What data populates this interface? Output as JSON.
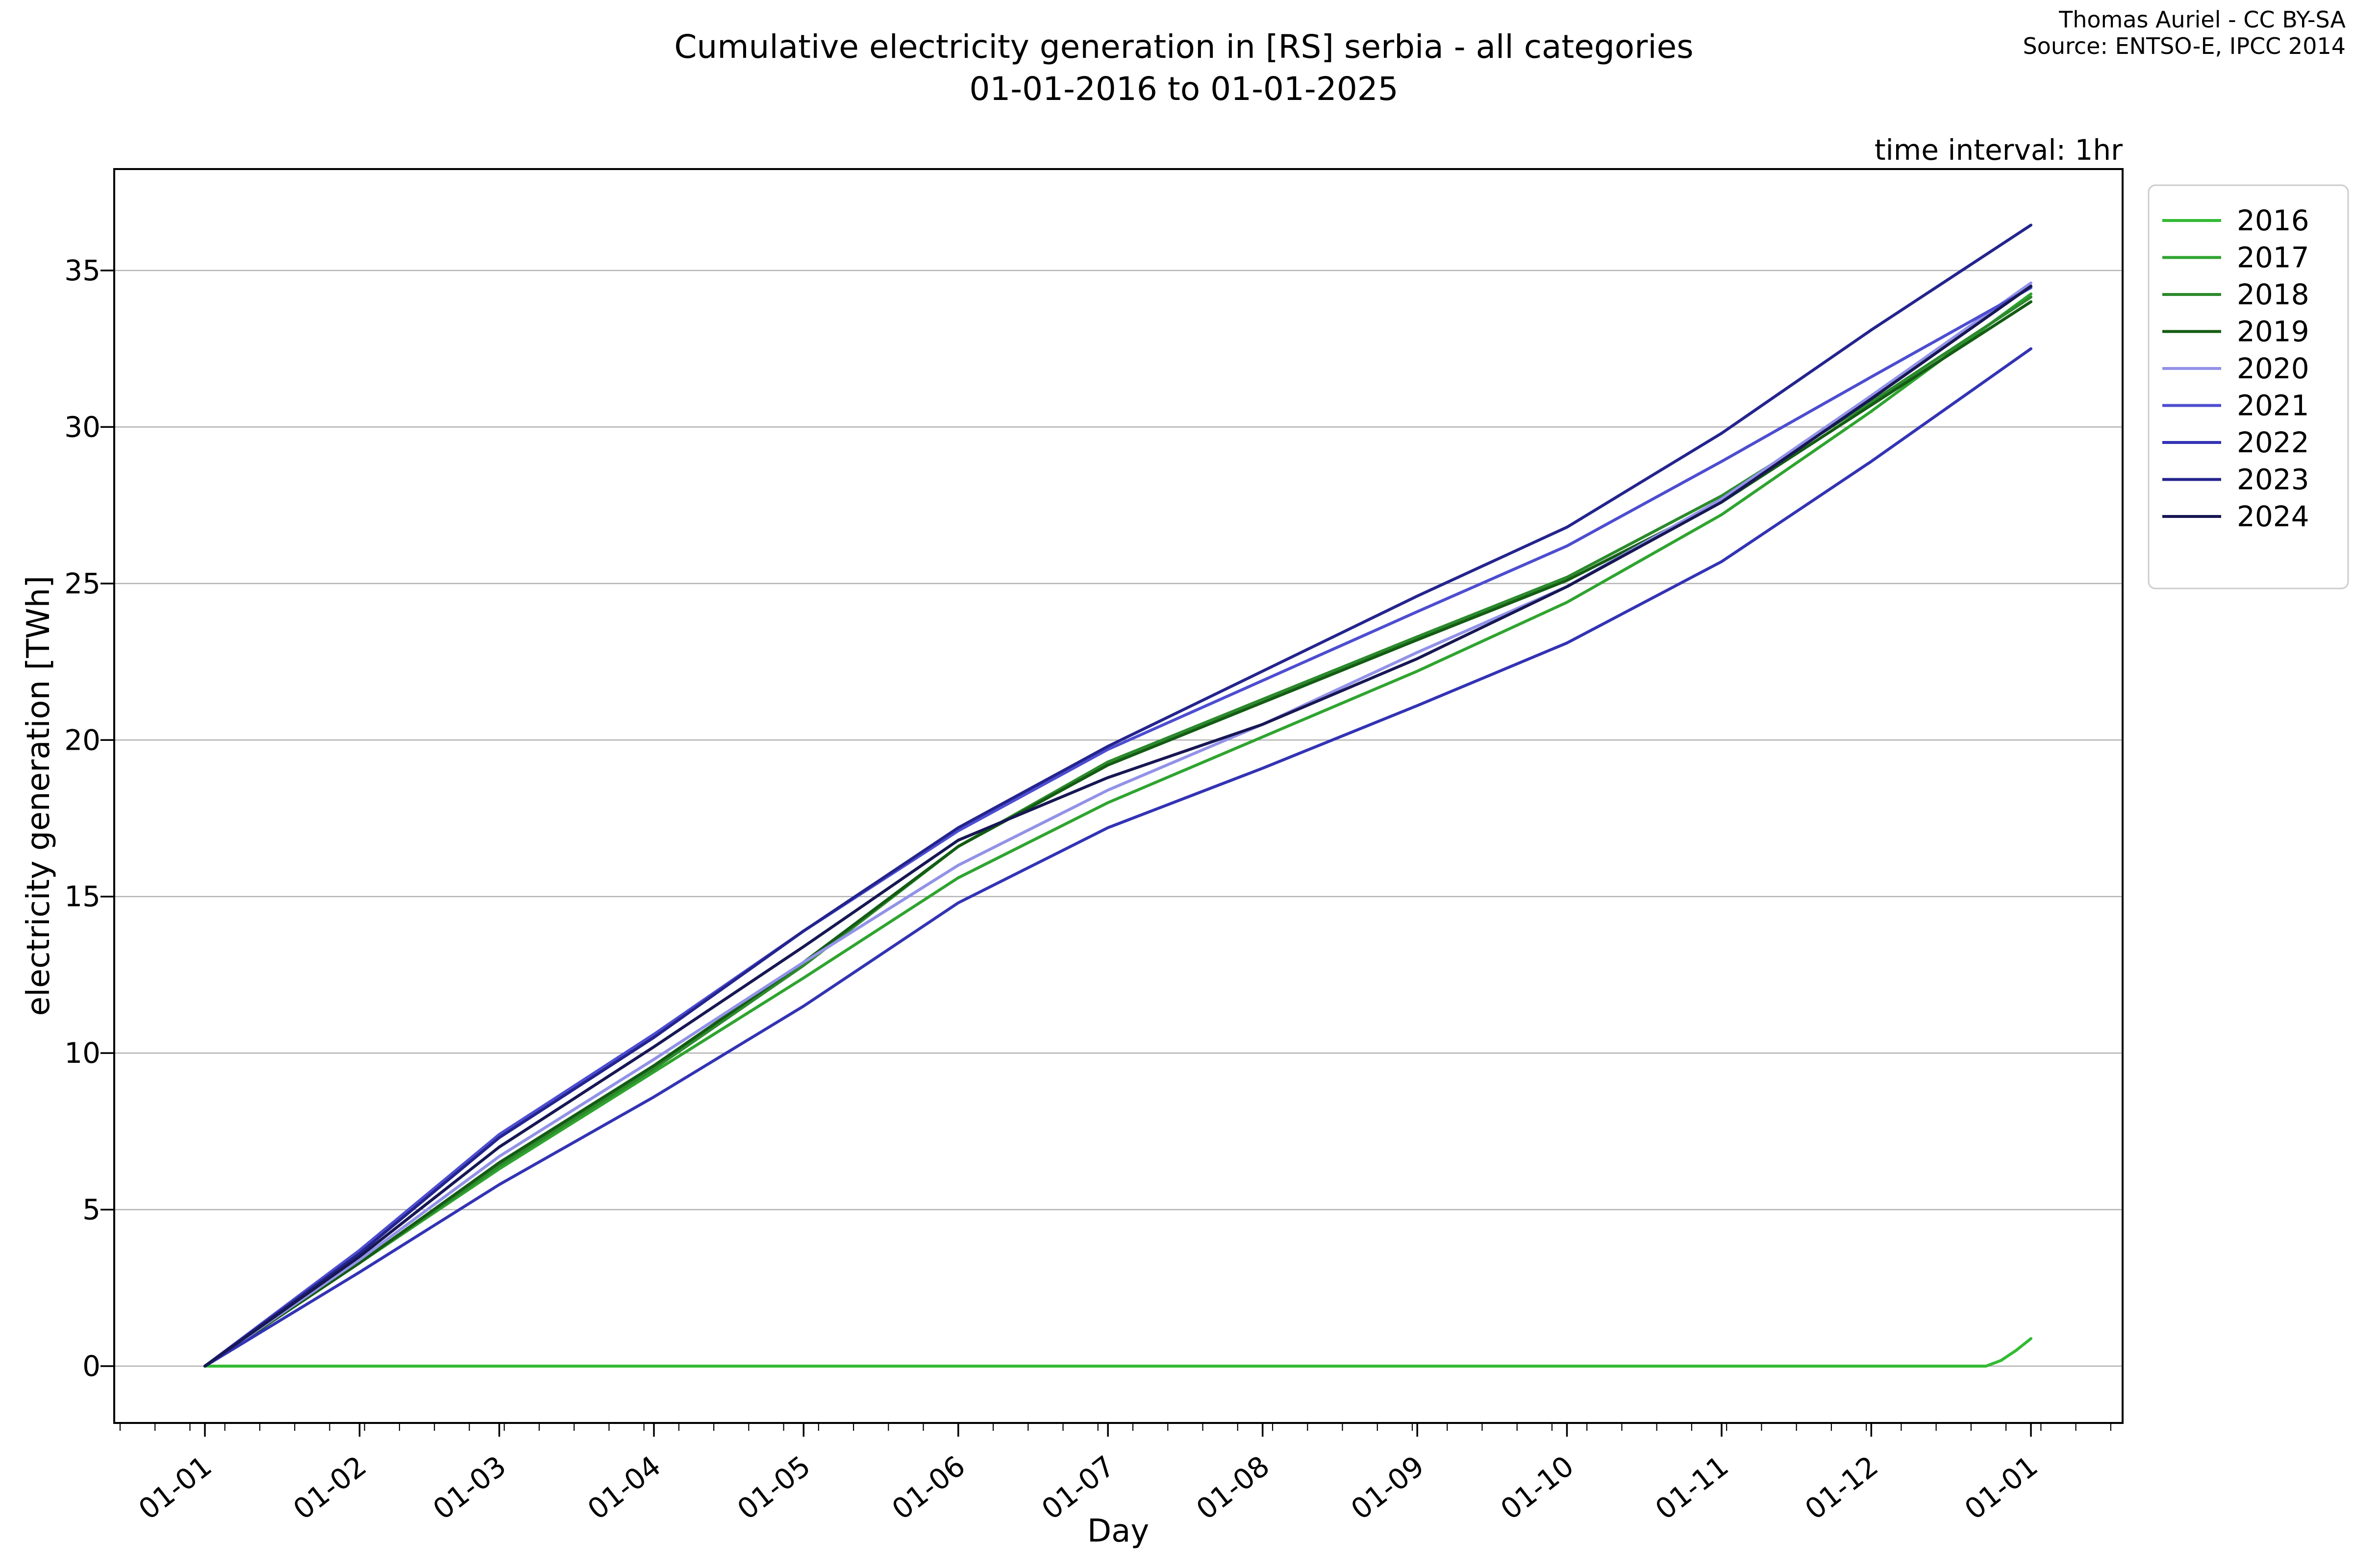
{
  "header": {
    "title_line1": "Cumulative electricity generation in [RS] serbia - all categories",
    "title_line2": "01-01-2016 to 01-01-2025",
    "attribution_line1": "Thomas Auriel - CC BY-SA",
    "attribution_line2": "Source: ENTSO-E, IPCC 2014"
  },
  "chart_data": {
    "type": "line",
    "title": "Cumulative electricity generation in [RS] serbia - all categories 01-01-2016 to 01-01-2025",
    "note": "time interval: 1hr",
    "xlabel": "Day",
    "ylabel": "electricity generation [TWh]",
    "grid": "horizontal-only",
    "grid_color": "#b3b3b3",
    "legend_position": "upper right, outside plot",
    "x_tick_labels": [
      "01-01",
      "01-02",
      "01-03",
      "01-04",
      "01-05",
      "01-06",
      "01-07",
      "01-08",
      "01-09",
      "01-10",
      "01-11",
      "01-12",
      "01-01"
    ],
    "x_tick_days": [
      0,
      31,
      59,
      90,
      120,
      151,
      181,
      212,
      243,
      273,
      304,
      334,
      366
    ],
    "minor_tick_days": {
      "start": -17,
      "step": 7,
      "end": 384
    },
    "y_ticks": [
      0,
      5,
      10,
      15,
      20,
      25,
      30,
      35
    ],
    "ylim": [
      -1.82,
      38.27
    ],
    "xlim_days": [
      -18.3,
      384.3
    ],
    "series": [
      {
        "name": "2016",
        "color": "#33bb33",
        "points": [
          [
            0,
            0
          ],
          [
            357,
            0
          ],
          [
            360,
            0.18
          ],
          [
            363,
            0.5
          ],
          [
            366,
            0.88
          ]
        ]
      },
      {
        "name": "2017",
        "color": "#2fa42f",
        "points": [
          [
            0,
            0
          ],
          [
            31,
            3.3
          ],
          [
            59,
            6.3
          ],
          [
            90,
            9.4
          ],
          [
            120,
            12.4
          ],
          [
            151,
            15.6
          ],
          [
            181,
            18.0
          ],
          [
            212,
            20.1
          ],
          [
            243,
            22.2
          ],
          [
            273,
            24.4
          ],
          [
            304,
            27.2
          ],
          [
            334,
            30.5
          ],
          [
            366,
            34.25
          ]
        ]
      },
      {
        "name": "2018",
        "color": "#2c8a2c",
        "points": [
          [
            0,
            0
          ],
          [
            31,
            3.3
          ],
          [
            59,
            6.4
          ],
          [
            90,
            9.5
          ],
          [
            120,
            12.8
          ],
          [
            151,
            16.6
          ],
          [
            181,
            19.3
          ],
          [
            212,
            21.3
          ],
          [
            243,
            23.3
          ],
          [
            273,
            25.2
          ],
          [
            304,
            27.8
          ],
          [
            334,
            30.8
          ],
          [
            366,
            34.15
          ]
        ]
      },
      {
        "name": "2019",
        "color": "#145c14",
        "points": [
          [
            0,
            0
          ],
          [
            31,
            3.3
          ],
          [
            59,
            6.5
          ],
          [
            90,
            9.6
          ],
          [
            120,
            12.9
          ],
          [
            151,
            16.6
          ],
          [
            181,
            19.2
          ],
          [
            212,
            21.2
          ],
          [
            243,
            23.2
          ],
          [
            273,
            25.1
          ],
          [
            304,
            27.6
          ],
          [
            334,
            30.7
          ],
          [
            366,
            34.0
          ]
        ]
      },
      {
        "name": "2020",
        "color": "#9292e8",
        "points": [
          [
            0,
            0
          ],
          [
            31,
            3.4
          ],
          [
            59,
            6.7
          ],
          [
            90,
            9.8
          ],
          [
            120,
            12.9
          ],
          [
            151,
            16.0
          ],
          [
            181,
            18.4
          ],
          [
            212,
            20.5
          ],
          [
            243,
            22.8
          ],
          [
            273,
            24.9
          ],
          [
            304,
            27.7
          ],
          [
            334,
            31.0
          ],
          [
            366,
            34.6
          ]
        ]
      },
      {
        "name": "2021",
        "color": "#4d4dd1",
        "points": [
          [
            0,
            0
          ],
          [
            31,
            3.7
          ],
          [
            59,
            7.4
          ],
          [
            90,
            10.6
          ],
          [
            120,
            13.9
          ],
          [
            151,
            17.1
          ],
          [
            181,
            19.7
          ],
          [
            212,
            21.9
          ],
          [
            243,
            24.1
          ],
          [
            273,
            26.2
          ],
          [
            304,
            28.9
          ],
          [
            334,
            31.6
          ],
          [
            366,
            34.45
          ]
        ]
      },
      {
        "name": "2022",
        "color": "#3333b5",
        "points": [
          [
            0,
            0
          ],
          [
            31,
            3.0
          ],
          [
            59,
            5.8
          ],
          [
            90,
            8.6
          ],
          [
            120,
            11.5
          ],
          [
            151,
            14.8
          ],
          [
            181,
            17.2
          ],
          [
            212,
            19.1
          ],
          [
            243,
            21.1
          ],
          [
            273,
            23.1
          ],
          [
            304,
            25.7
          ],
          [
            334,
            28.9
          ],
          [
            366,
            32.5
          ]
        ]
      },
      {
        "name": "2023",
        "color": "#24248e",
        "points": [
          [
            0,
            0
          ],
          [
            31,
            3.6
          ],
          [
            59,
            7.3
          ],
          [
            90,
            10.5
          ],
          [
            120,
            13.9
          ],
          [
            151,
            17.2
          ],
          [
            181,
            19.8
          ],
          [
            212,
            22.2
          ],
          [
            243,
            24.6
          ],
          [
            273,
            26.8
          ],
          [
            304,
            29.8
          ],
          [
            334,
            33.1
          ],
          [
            366,
            36.45
          ]
        ]
      },
      {
        "name": "2024",
        "color": "#171754",
        "points": [
          [
            0,
            0
          ],
          [
            31,
            3.5
          ],
          [
            59,
            7.0
          ],
          [
            90,
            10.2
          ],
          [
            120,
            13.4
          ],
          [
            151,
            16.8
          ],
          [
            181,
            18.8
          ],
          [
            212,
            20.5
          ],
          [
            243,
            22.6
          ],
          [
            273,
            24.9
          ],
          [
            304,
            27.6
          ],
          [
            334,
            30.9
          ],
          [
            366,
            34.5
          ]
        ]
      }
    ]
  },
  "legend": {
    "entries": [
      "2016",
      "2017",
      "2018",
      "2019",
      "2020",
      "2021",
      "2022",
      "2023",
      "2024"
    ],
    "border_color": "#cccccc"
  }
}
